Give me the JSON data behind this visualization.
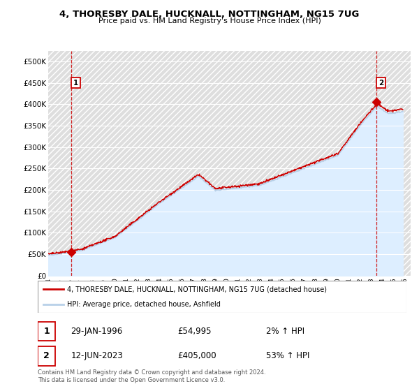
{
  "title": "4, THORESBY DALE, HUCKNALL, NOTTINGHAM, NG15 7UG",
  "subtitle": "Price paid vs. HM Land Registry's House Price Index (HPI)",
  "xlim_start": 1994.0,
  "xlim_end": 2026.5,
  "ylim": [
    0,
    525000
  ],
  "yticks": [
    0,
    50000,
    100000,
    150000,
    200000,
    250000,
    300000,
    350000,
    400000,
    450000,
    500000
  ],
  "ytick_labels": [
    "£0",
    "£50K",
    "£100K",
    "£150K",
    "£200K",
    "£250K",
    "£300K",
    "£350K",
    "£400K",
    "£450K",
    "£500K"
  ],
  "xticks": [
    1994,
    1995,
    1996,
    1997,
    1998,
    1999,
    2000,
    2001,
    2002,
    2003,
    2004,
    2005,
    2006,
    2007,
    2008,
    2009,
    2010,
    2011,
    2012,
    2013,
    2014,
    2015,
    2016,
    2017,
    2018,
    2019,
    2020,
    2021,
    2022,
    2023,
    2024,
    2025,
    2026
  ],
  "hpi_color": "#b8d0e8",
  "price_color": "#cc0000",
  "point1_date": 1996.08,
  "point1_price": 54995,
  "point2_date": 2023.45,
  "point2_price": 405000,
  "legend_line1": "4, THORESBY DALE, HUCKNALL, NOTTINGHAM, NG15 7UG (detached house)",
  "legend_line2": "HPI: Average price, detached house, Ashfield",
  "table_row1": [
    "1",
    "29-JAN-1996",
    "£54,995",
    "2% ↑ HPI"
  ],
  "table_row2": [
    "2",
    "12-JUN-2023",
    "£405,000",
    "53% ↑ HPI"
  ],
  "footnote": "Contains HM Land Registry data © Crown copyright and database right 2024.\nThis data is licensed under the Open Government Licence v3.0.",
  "bg_hatch_color": "#e8e8e8",
  "plot_bg_color": "#ddeeff"
}
